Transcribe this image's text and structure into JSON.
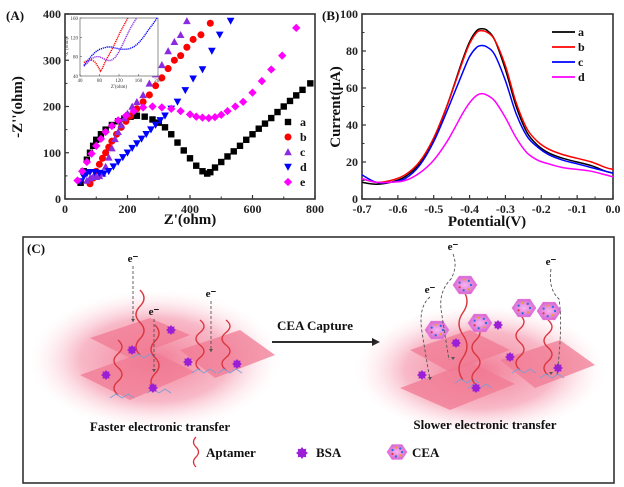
{
  "chart_data": [
    {
      "panel": "(A)",
      "type": "scatter",
      "title": "",
      "xlabel": "Z'(ohm)",
      "ylabel": "-Z''(ohm)",
      "xlim": [
        0,
        800
      ],
      "ylim": [
        0,
        400
      ],
      "xticks": [
        "0",
        "200",
        "400",
        "600",
        "800"
      ],
      "yticks": [
        "0",
        "100",
        "200",
        "300",
        "400"
      ],
      "legend_position": "bottom-right",
      "series": [
        {
          "name": "a",
          "marker": "square",
          "color": "#000000",
          "x": [
            50,
            60,
            70,
            80,
            90,
            100,
            115,
            130,
            150,
            170,
            190,
            210,
            230,
            255,
            280,
            300,
            320,
            340,
            360,
            380,
            400,
            420,
            440,
            455,
            465,
            480,
            500,
            520,
            540,
            560,
            580,
            600,
            620,
            640,
            660,
            680,
            700,
            720,
            740,
            760,
            785
          ],
          "y": [
            35,
            60,
            85,
            100,
            115,
            128,
            140,
            150,
            160,
            168,
            174,
            178,
            180,
            178,
            172,
            165,
            155,
            140,
            122,
            105,
            88,
            72,
            60,
            55,
            58,
            68,
            80,
            92,
            103,
            115,
            128,
            140,
            152,
            163,
            175,
            188,
            200,
            212,
            224,
            236,
            250
          ]
        },
        {
          "name": "b",
          "marker": "circle",
          "color": "#ff0000",
          "x": [
            80,
            90,
            100,
            110,
            120,
            130,
            140,
            150,
            165,
            180,
            195,
            210,
            230,
            250,
            270,
            290,
            310,
            330,
            350,
            370,
            390,
            410,
            435,
            465
          ],
          "y": [
            33,
            45,
            60,
            75,
            88,
            100,
            112,
            125,
            140,
            155,
            168,
            180,
            195,
            210,
            225,
            245,
            262,
            282,
            300,
            310,
            328,
            345,
            355,
            380
          ]
        },
        {
          "name": "c",
          "marker": "triangle-up",
          "color": "#8a2be2",
          "x": [
            70,
            80,
            90,
            100,
            110,
            120,
            130,
            140,
            150,
            160,
            170,
            180,
            190,
            200,
            215,
            230,
            250,
            270,
            290,
            310,
            330,
            350,
            370,
            390
          ],
          "y": [
            40,
            45,
            48,
            48,
            50,
            55,
            70,
            90,
            110,
            130,
            145,
            160,
            175,
            185,
            200,
            210,
            225,
            250,
            270,
            290,
            320,
            340,
            355,
            385
          ]
        },
        {
          "name": "d",
          "marker": "triangle-down",
          "color": "#0000ff",
          "x": [
            50,
            60,
            70,
            80,
            95,
            110,
            125,
            140,
            155,
            170,
            185,
            200,
            215,
            230,
            245,
            260,
            275,
            290,
            305,
            320,
            340,
            360,
            385,
            410,
            440,
            470,
            495,
            530
          ],
          "y": [
            38,
            48,
            55,
            58,
            58,
            56,
            55,
            60,
            70,
            80,
            90,
            100,
            110,
            120,
            130,
            140,
            150,
            160,
            170,
            180,
            195,
            210,
            235,
            260,
            280,
            320,
            355,
            385
          ]
        },
        {
          "name": "e",
          "marker": "diamond",
          "color": "#ff00ff",
          "x": [
            40,
            55,
            70,
            85,
            100,
            115,
            130,
            150,
            170,
            195,
            220,
            250,
            280,
            310,
            340,
            370,
            400,
            420,
            440,
            460,
            480,
            500,
            520,
            545,
            570,
            600,
            630,
            660,
            695,
            740
          ],
          "y": [
            40,
            60,
            80,
            98,
            115,
            130,
            145,
            158,
            170,
            180,
            190,
            198,
            200,
            198,
            195,
            190,
            183,
            178,
            176,
            175,
            177,
            182,
            190,
            200,
            210,
            230,
            255,
            280,
            310,
            370
          ]
        }
      ],
      "inset": {
        "xlabel": "Z'(ohm)",
        "ylabel": "-Z''(ohm)",
        "xlim": [
          40,
          200
        ],
        "ylim": [
          40,
          160
        ],
        "xticks": [
          "40",
          "80",
          "120",
          "160",
          "200"
        ],
        "yticks": [
          "40",
          "80",
          "120",
          "160"
        ],
        "series": [
          {
            "name": "b",
            "color": "#ff0000",
            "x": [
              48,
              55,
              62,
              70,
              78,
              82,
              86,
              92,
              100,
              108,
              115,
              122,
              130,
              138
            ],
            "y": [
              68,
              72,
              74,
              70,
              58,
              50,
              56,
              70,
              85,
              100,
              115,
              130,
              145,
              160
            ]
          },
          {
            "name": "c",
            "color": "#8a2be2",
            "x": [
              48,
              56,
              64,
              72,
              80,
              88,
              96,
              104,
              112,
              120,
              126,
              132,
              138,
              144,
              150,
              156
            ],
            "y": [
              60,
              68,
              76,
              80,
              80,
              76,
              72,
              72,
              78,
              90,
              102,
              115,
              128,
              140,
              150,
              160
            ]
          },
          {
            "name": "d",
            "color": "#0000ff",
            "x": [
              48,
              56,
              64,
              72,
              80,
              88,
              96,
              104,
              112,
              120,
              130,
              140,
              150,
              160,
              170,
              180,
              190,
              198
            ],
            "y": [
              62,
              72,
              82,
              90,
              95,
              98,
              100,
              100,
              98,
              96,
              95,
              96,
              100,
              108,
              120,
              135,
              148,
              160
            ]
          }
        ]
      }
    },
    {
      "panel": "(B)",
      "type": "line",
      "title": "",
      "xlabel": "Potential(V)",
      "ylabel": "Current(μA)",
      "xlim": [
        -0.7,
        0.0
      ],
      "ylim": [
        0,
        100
      ],
      "xticks": [
        "-0.7",
        "-0.6",
        "-0.5",
        "-0.4",
        "-0.3",
        "-0.2",
        "-0.1",
        "0.0"
      ],
      "yticks": [
        "0",
        "20",
        "40",
        "60",
        "80",
        "100"
      ],
      "legend_position": "top-right",
      "x": [
        -0.7,
        -0.66,
        -0.62,
        -0.58,
        -0.54,
        -0.5,
        -0.46,
        -0.42,
        -0.4,
        -0.38,
        -0.365,
        -0.35,
        -0.33,
        -0.3,
        -0.27,
        -0.24,
        -0.21,
        -0.18,
        -0.14,
        -0.1,
        -0.06,
        -0.02,
        0.0
      ],
      "series": [
        {
          "name": "a",
          "color": "#000000",
          "values": [
            9,
            8,
            9,
            12,
            19,
            32,
            52,
            75,
            85,
            91,
            92,
            91,
            86,
            70,
            50,
            36,
            29,
            25,
            22,
            20,
            18,
            15,
            14
          ]
        },
        {
          "name": "b",
          "color": "#ff0000",
          "values": [
            11,
            9,
            10,
            13,
            20,
            33,
            52,
            74,
            84,
            90,
            91,
            90,
            86,
            72,
            52,
            38,
            31,
            27,
            24,
            22,
            20,
            17,
            16
          ]
        },
        {
          "name": "c",
          "color": "#0000ff",
          "values": [
            13,
            9,
            9,
            11,
            18,
            31,
            49,
            68,
            77,
            82,
            83,
            82,
            78,
            64,
            46,
            34,
            28,
            24,
            21,
            19,
            17,
            15,
            14
          ]
        },
        {
          "name": "d",
          "color": "#ff00ff",
          "values": [
            11,
            9,
            9,
            10,
            14,
            21,
            32,
            46,
            52,
            56,
            57,
            56,
            53,
            44,
            33,
            25,
            21,
            19,
            17,
            16,
            15,
            13,
            12
          ]
        }
      ]
    }
  ],
  "scheme": {
    "panel_label": "(C)",
    "electron_label": "e⁻",
    "arrow_label": "CEA Capture",
    "left_caption": "Faster electronic transfer",
    "right_caption": "Slower electronic transfer",
    "legend": [
      {
        "name": "aptamer",
        "label": "Aptamer",
        "color": "#d9363e"
      },
      {
        "name": "bsa",
        "label": "BSA",
        "color": "#9b1fd6"
      },
      {
        "name": "cea",
        "label": "CEA",
        "color": "#e87adf"
      }
    ]
  },
  "colors": {
    "substrate": "#f08aa0",
    "substrate_glow": "#ffd0dc",
    "linker": "#7a9fd6"
  }
}
